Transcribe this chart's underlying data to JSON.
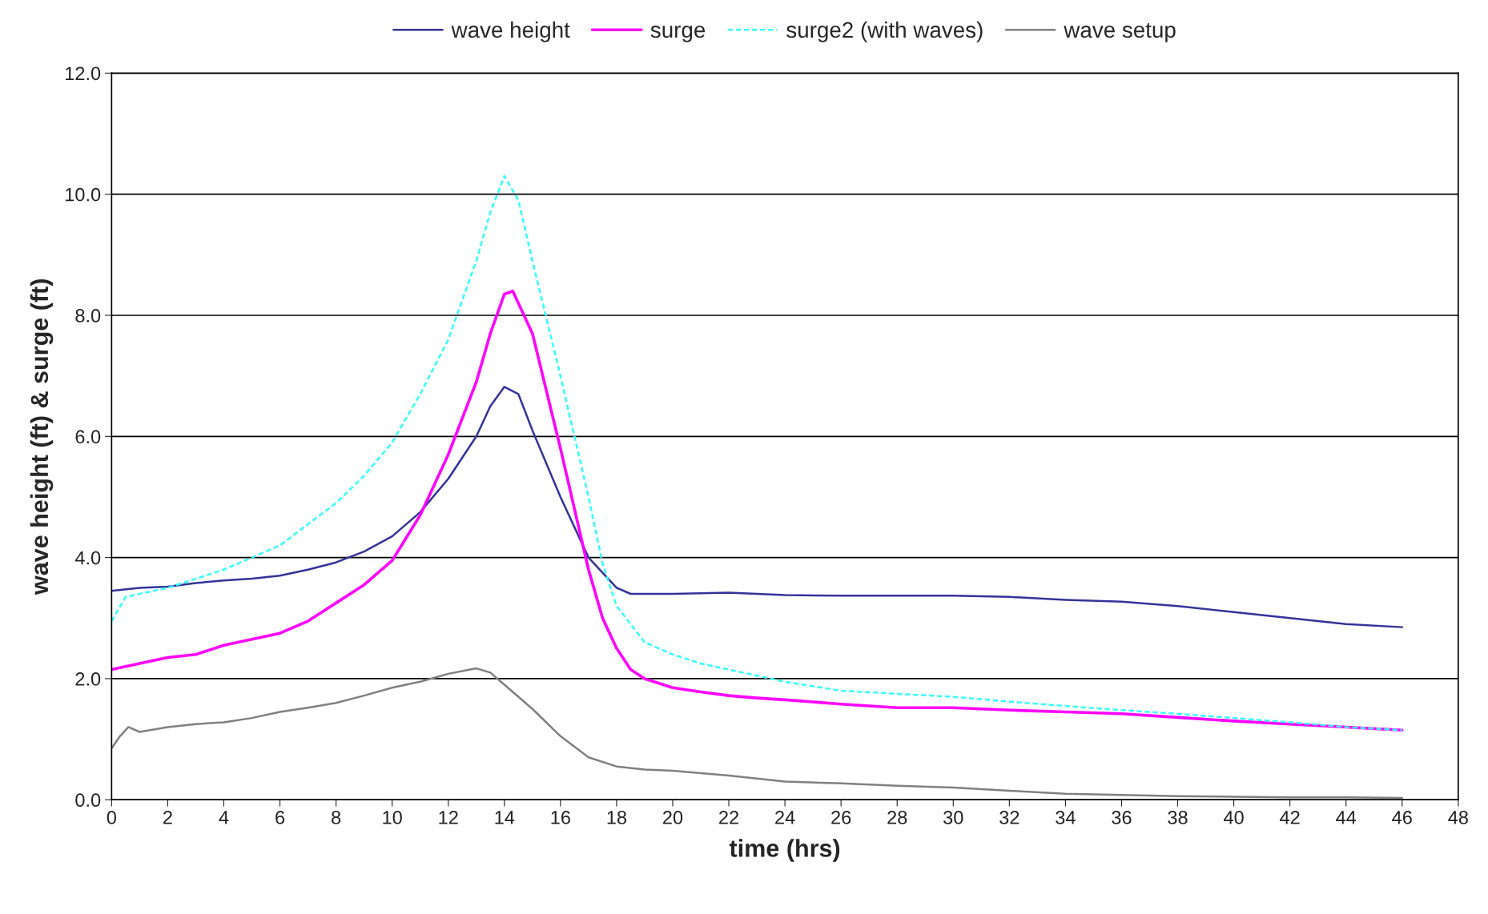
{
  "chart_data": {
    "type": "line",
    "xlabel": "time (hrs)",
    "ylabel": "wave height (ft) & surge (ft)",
    "xlim": [
      0,
      48
    ],
    "ylim": [
      0,
      12
    ],
    "xticks": [
      0,
      2,
      4,
      6,
      8,
      10,
      12,
      14,
      16,
      18,
      20,
      22,
      24,
      26,
      28,
      30,
      32,
      34,
      36,
      38,
      40,
      42,
      44,
      46,
      48
    ],
    "yticks": [
      {
        "value": 0,
        "label": "0.0"
      },
      {
        "value": 2,
        "label": "2.0"
      },
      {
        "value": 4,
        "label": "4.0"
      },
      {
        "value": 6,
        "label": "6.0"
      },
      {
        "value": 8,
        "label": "8.0"
      },
      {
        "value": 10,
        "label": "10.0"
      },
      {
        "value": 12,
        "label": "12.0"
      }
    ],
    "grid": "y",
    "legend": "top",
    "marker": "none",
    "series": [
      {
        "name": "wave height",
        "color": "#333399",
        "line_style": "solid",
        "x": [
          0,
          1,
          2,
          3,
          4,
          5,
          6,
          7,
          8,
          9,
          10,
          11,
          12,
          13,
          13.5,
          14,
          14.5,
          15,
          16,
          17,
          18,
          18.5,
          20,
          22,
          24,
          26,
          28,
          30,
          32,
          34,
          36,
          38,
          40,
          42,
          44,
          46
        ],
        "values": [
          3.45,
          3.5,
          3.52,
          3.58,
          3.62,
          3.65,
          3.7,
          3.8,
          3.92,
          4.1,
          4.35,
          4.75,
          5.3,
          6.0,
          6.5,
          6.82,
          6.7,
          6.1,
          5.0,
          4.0,
          3.5,
          3.4,
          3.4,
          3.42,
          3.38,
          3.37,
          3.37,
          3.37,
          3.35,
          3.3,
          3.27,
          3.2,
          3.1,
          3.0,
          2.9,
          2.85
        ]
      },
      {
        "name": "surge",
        "color": "#ff00ff",
        "line_style": "solid",
        "x": [
          0,
          1,
          2,
          3,
          4,
          5,
          6,
          7,
          8,
          9,
          10,
          11,
          12,
          13,
          13.5,
          14,
          14.3,
          15,
          16,
          17,
          17.5,
          18,
          18.5,
          19,
          20,
          21,
          22,
          23,
          24,
          26,
          28,
          30,
          32,
          34,
          36,
          38,
          40,
          42,
          44,
          46
        ],
        "values": [
          2.15,
          2.25,
          2.35,
          2.4,
          2.55,
          2.65,
          2.75,
          2.95,
          3.25,
          3.55,
          3.95,
          4.7,
          5.7,
          6.9,
          7.7,
          8.35,
          8.4,
          7.7,
          5.8,
          3.8,
          3.0,
          2.5,
          2.15,
          2.0,
          1.85,
          1.78,
          1.72,
          1.68,
          1.65,
          1.58,
          1.52,
          1.52,
          1.48,
          1.45,
          1.42,
          1.36,
          1.3,
          1.25,
          1.2,
          1.15
        ]
      },
      {
        "name": "surge2 (with waves)",
        "color": "#33ffff",
        "line_style": "dashed",
        "x": [
          0,
          0.5,
          2,
          4,
          6,
          7,
          8,
          9,
          10,
          11,
          12,
          13,
          13.5,
          14,
          14.5,
          15,
          16,
          17,
          17.5,
          18,
          19,
          20,
          21,
          22,
          23,
          24,
          26,
          28,
          30,
          32,
          34,
          36,
          38,
          40,
          42,
          44,
          46
        ],
        "values": [
          2.95,
          3.35,
          3.5,
          3.8,
          4.2,
          4.55,
          4.9,
          5.35,
          5.9,
          6.7,
          7.6,
          8.9,
          9.7,
          10.3,
          9.9,
          8.9,
          7.0,
          5.0,
          3.9,
          3.2,
          2.6,
          2.4,
          2.25,
          2.15,
          2.05,
          1.95,
          1.8,
          1.75,
          1.7,
          1.62,
          1.55,
          1.48,
          1.42,
          1.35,
          1.28,
          1.2,
          1.15
        ]
      },
      {
        "name": "wave setup",
        "color": "#808080",
        "line_style": "solid",
        "x": [
          0,
          0.3,
          0.6,
          1,
          2,
          3,
          4,
          5,
          6,
          7,
          8,
          9,
          10,
          11,
          12,
          13,
          13.5,
          14,
          15,
          16,
          17,
          18,
          19,
          20,
          22,
          24,
          26,
          28,
          30,
          32,
          34,
          36,
          38,
          40,
          42,
          44,
          46
        ],
        "values": [
          0.85,
          1.05,
          1.2,
          1.12,
          1.2,
          1.25,
          1.28,
          1.35,
          1.45,
          1.52,
          1.6,
          1.72,
          1.85,
          1.95,
          2.08,
          2.17,
          2.1,
          1.9,
          1.5,
          1.05,
          0.7,
          0.55,
          0.5,
          0.48,
          0.4,
          0.3,
          0.27,
          0.23,
          0.2,
          0.15,
          0.1,
          0.08,
          0.06,
          0.05,
          0.04,
          0.04,
          0.03
        ]
      }
    ]
  }
}
